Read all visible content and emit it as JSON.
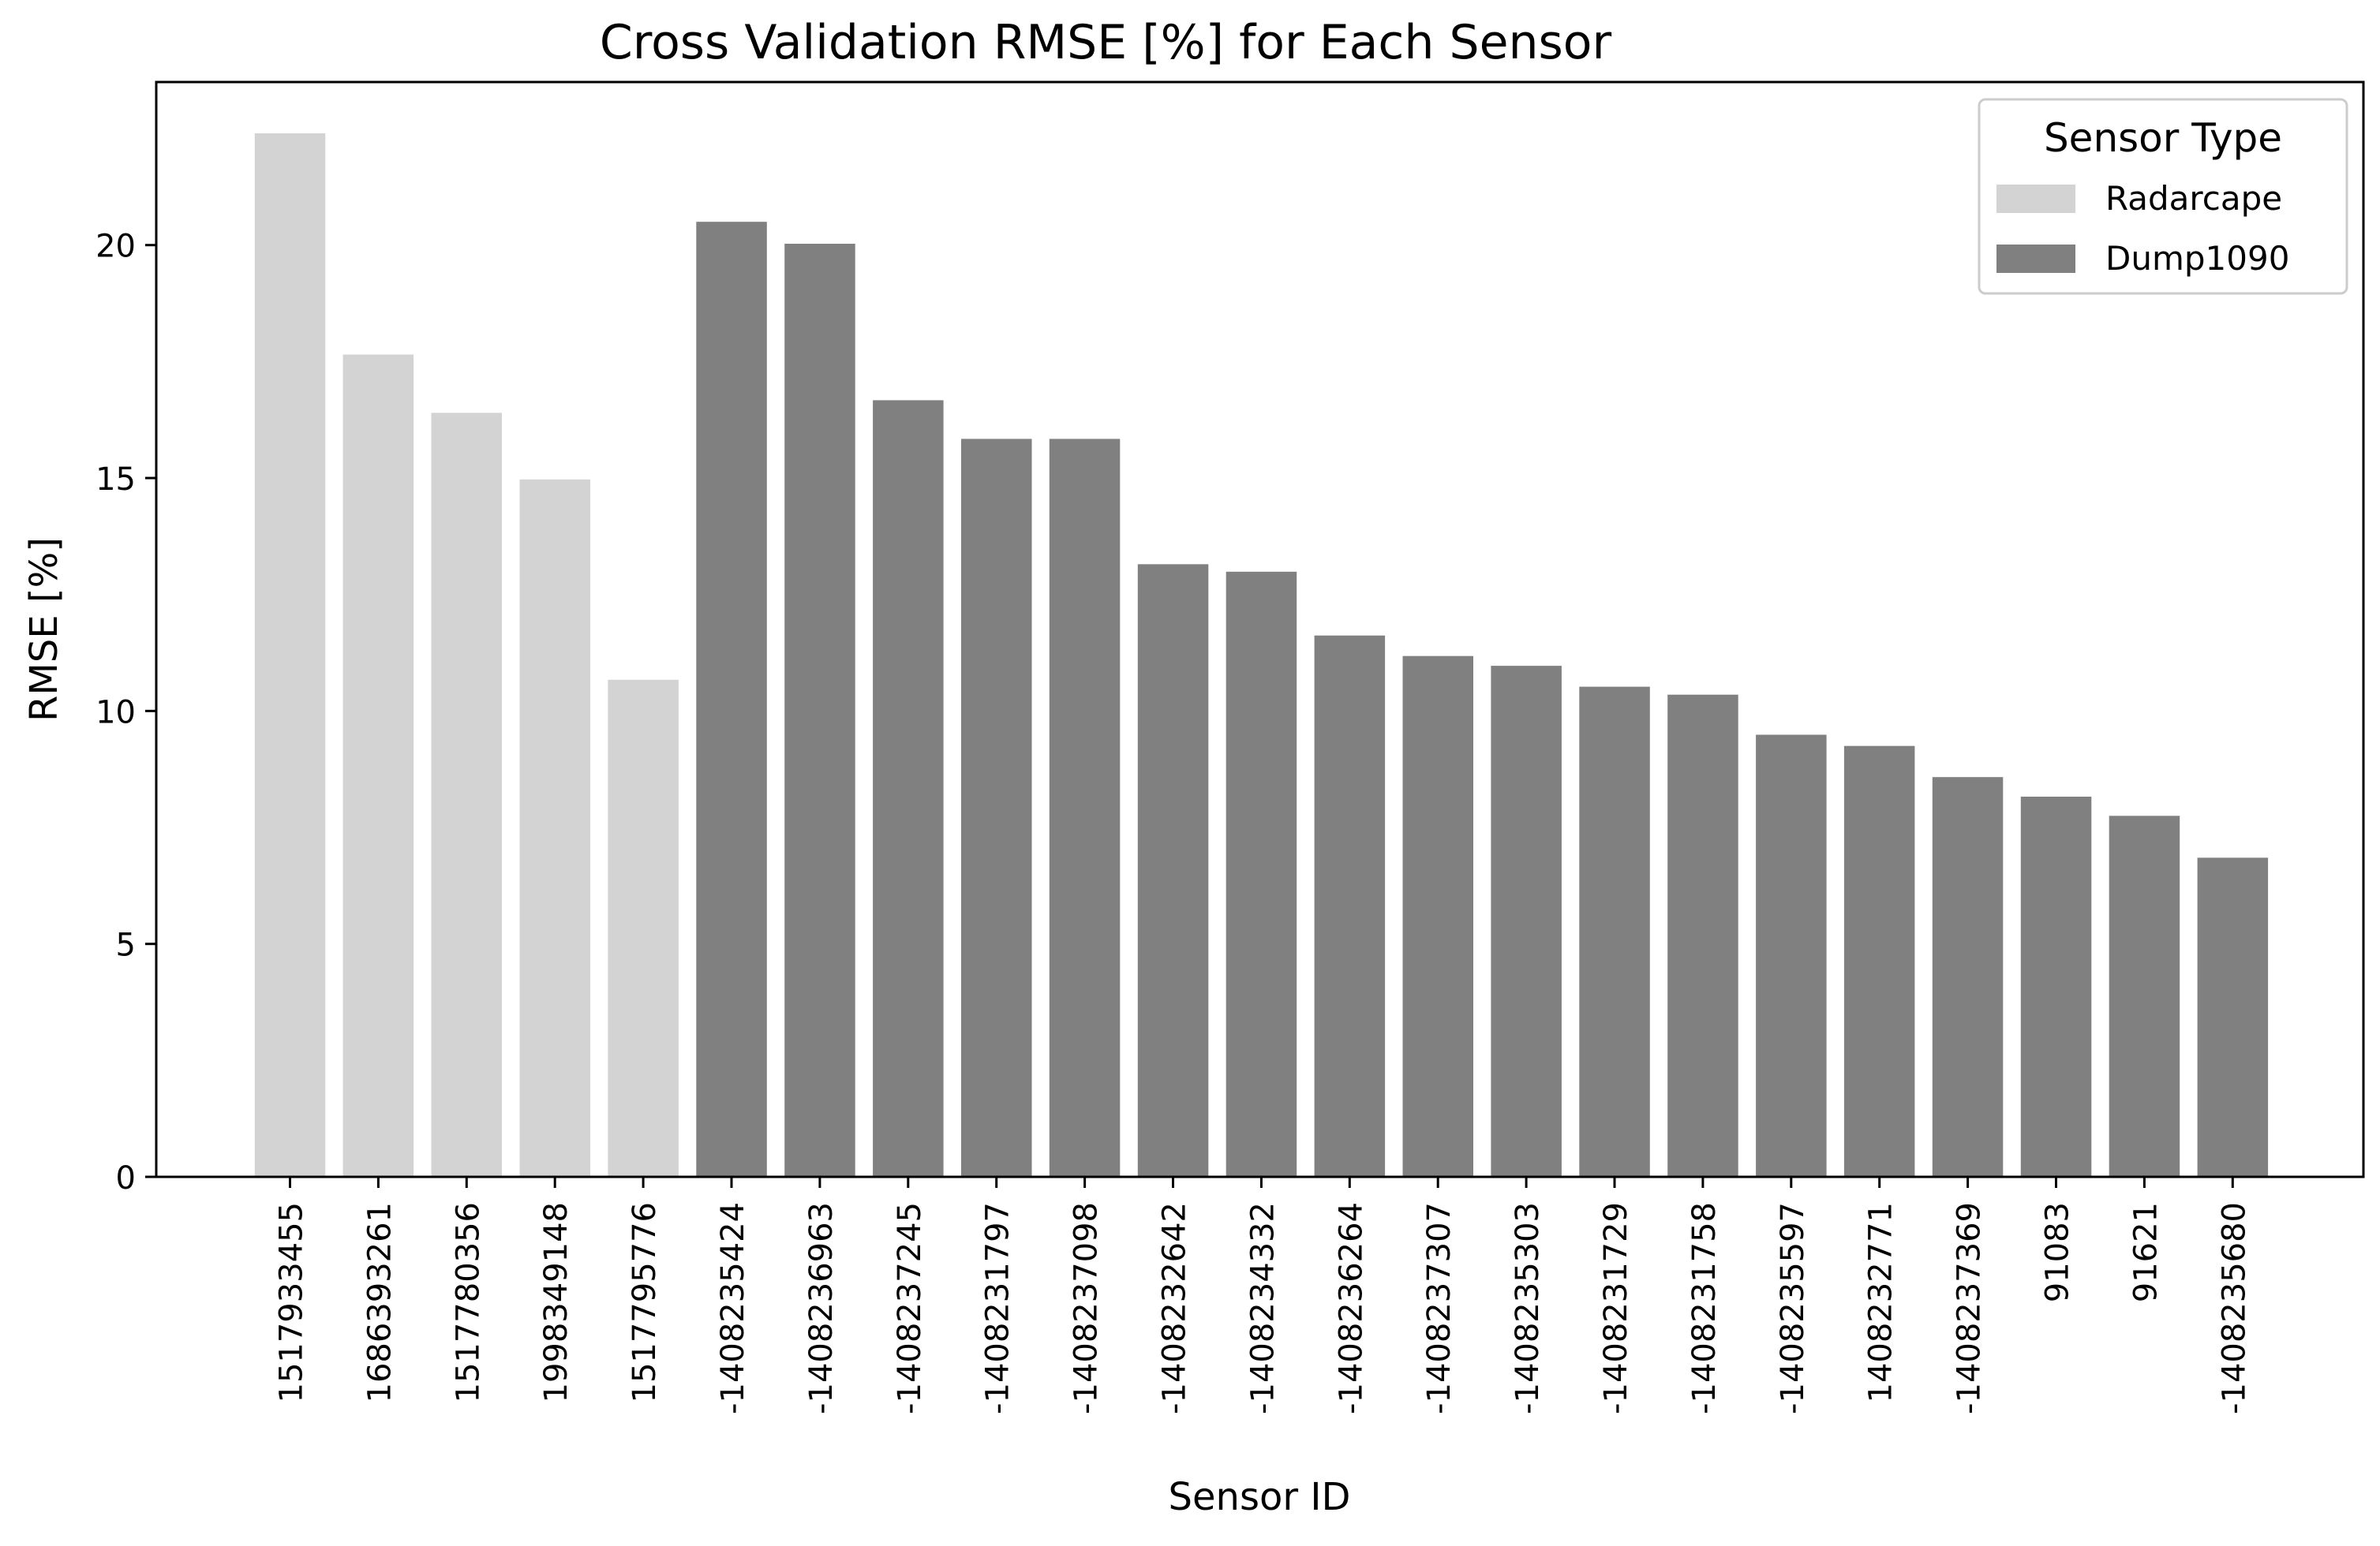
{
  "chart_data": {
    "type": "bar",
    "title": "Cross Validation RMSE [%] for Each Sensor",
    "xlabel": "Sensor ID",
    "ylabel": "RMSE [%]",
    "ylim": [
      0,
      23.5
    ],
    "yticks": [
      0,
      5,
      10,
      15,
      20
    ],
    "grid": false,
    "legend": {
      "title": "Sensor Type",
      "placement": "top-right",
      "entries": [
        {
          "name": "Radarcape",
          "color": "#d3d3d3"
        },
        {
          "name": "Dump1090",
          "color": "#808080"
        }
      ]
    },
    "categories": [
      "1517933455",
      "1686393261",
      "1517780356",
      "1998349148",
      "1517795776",
      "-1408235424",
      "-1408236963",
      "-1408237245",
      "-1408231797",
      "-1408237098",
      "-1408232642",
      "-1408234332",
      "-1408236264",
      "-1408237307",
      "-1408235303",
      "-1408231729",
      "-1408231758",
      "-1408235597",
      "1408232771",
      "-1408237369",
      "91083",
      "91621",
      "-1408235680"
    ],
    "values": [
      22.4,
      17.65,
      16.4,
      14.97,
      10.67,
      20.5,
      20.03,
      16.67,
      15.84,
      15.84,
      13.15,
      12.99,
      11.62,
      11.18,
      10.97,
      10.52,
      10.35,
      9.49,
      9.25,
      8.58,
      8.16,
      7.75,
      6.85
    ],
    "sensor_types": [
      "Radarcape",
      "Radarcape",
      "Radarcape",
      "Radarcape",
      "Radarcape",
      "Dump1090",
      "Dump1090",
      "Dump1090",
      "Dump1090",
      "Dump1090",
      "Dump1090",
      "Dump1090",
      "Dump1090",
      "Dump1090",
      "Dump1090",
      "Dump1090",
      "Dump1090",
      "Dump1090",
      "Dump1090",
      "Dump1090",
      "Dump1090",
      "Dump1090",
      "Dump1090"
    ]
  }
}
